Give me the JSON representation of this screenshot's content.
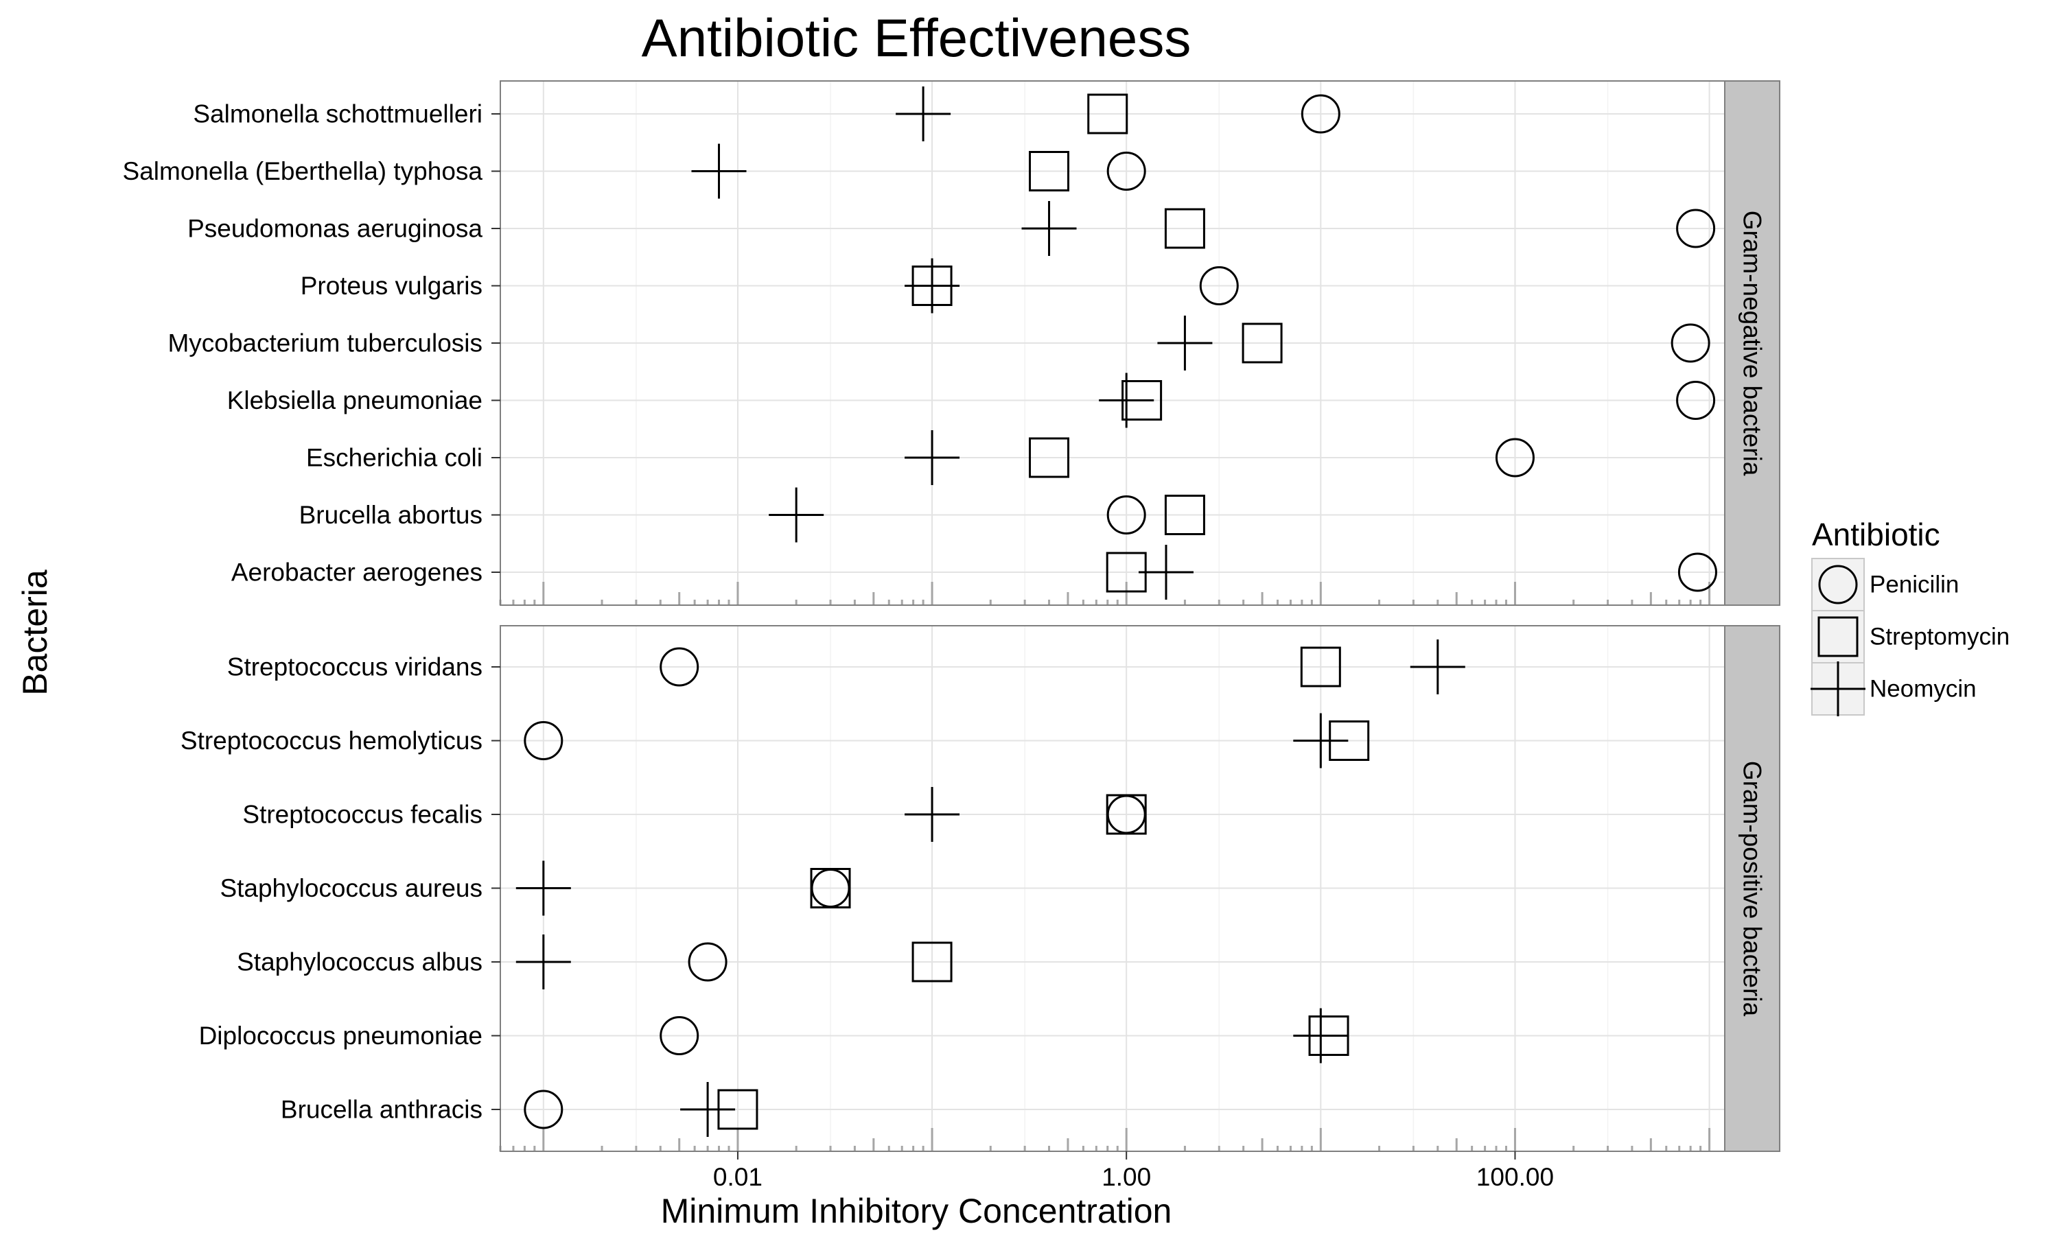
{
  "chart_data": {
    "type": "scatter",
    "title": "Antibiotic Effectiveness",
    "xlabel": "Minimum Inhibitory Concentration",
    "ylabel": "Bacteria",
    "x_scale": "log10",
    "xlim": [
      0.0006,
      1200
    ],
    "x_ticks": [
      0.01,
      1,
      100
    ],
    "x_tick_labels": [
      "0.01",
      "1.00",
      "100.00"
    ],
    "grid": true,
    "legend": {
      "title": "Antibiotic",
      "position": "right",
      "entries": [
        {
          "name": "Penicilin",
          "shape": "circle"
        },
        {
          "name": "Streptomycin",
          "shape": "square"
        },
        {
          "name": "Neomycin",
          "shape": "plus"
        }
      ]
    },
    "series_shapes": {
      "Penicilin": "circle",
      "Streptomycin": "square",
      "Neomycin": "plus"
    },
    "panels": [
      {
        "label": "Gram-negative bacteria",
        "categories": [
          "Salmonella schottmuelleri",
          "Salmonella (Eberthella) typhosa",
          "Pseudomonas aeruginosa",
          "Proteus vulgaris",
          "Mycobacterium tuberculosis",
          "Klebsiella pneumoniae",
          "Escherichia coli",
          "Brucella abortus",
          "Aerobacter aerogenes"
        ],
        "series": [
          {
            "name": "Penicilin",
            "values": [
              10,
              1,
              850,
              3,
              800,
              850,
              100,
              1,
              870
            ]
          },
          {
            "name": "Streptomycin",
            "values": [
              0.8,
              0.4,
              2,
              0.1,
              5,
              1.2,
              0.4,
              2,
              1
            ]
          },
          {
            "name": "Neomycin",
            "values": [
              0.09,
              0.008,
              0.4,
              0.1,
              2,
              1,
              0.1,
              0.02,
              1.6
            ]
          }
        ]
      },
      {
        "label": "Gram-positive bacteria",
        "categories": [
          "Streptococcus viridans",
          "Streptococcus hemolyticus",
          "Streptococcus fecalis",
          "Staphylococcus aureus",
          "Staphylococcus albus",
          "Diplococcus pneumoniae",
          "Brucella anthracis"
        ],
        "series": [
          {
            "name": "Penicilin",
            "values": [
              0.005,
              0.001,
              1,
              0.03,
              0.007,
              0.005,
              0.001
            ]
          },
          {
            "name": "Streptomycin",
            "values": [
              10,
              14,
              1,
              0.03,
              0.1,
              11,
              0.01
            ]
          },
          {
            "name": "Neomycin",
            "values": [
              40,
              10,
              0.1,
              0.001,
              0.001,
              10,
              0.007
            ]
          }
        ]
      }
    ]
  }
}
